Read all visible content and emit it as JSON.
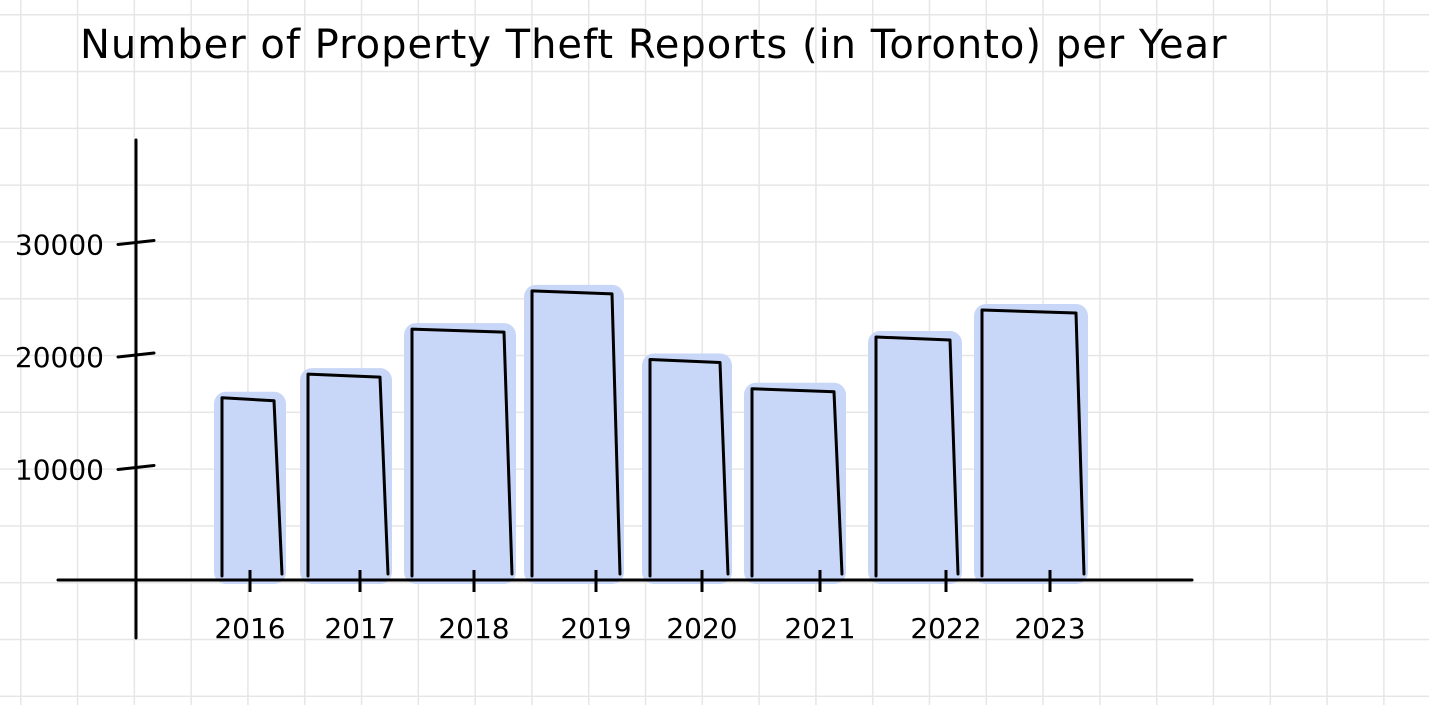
{
  "chart_data": {
    "type": "bar",
    "title": "Number of Property Theft Reports (in Toronto) per Year",
    "xlabel": "",
    "ylabel": "",
    "categories": [
      "2016",
      "2017",
      "2018",
      "2019",
      "2020",
      "2021",
      "2022",
      "2023"
    ],
    "values": [
      16200,
      18300,
      22300,
      25700,
      19600,
      17000,
      21600,
      24000
    ],
    "y_ticks": [
      "10000",
      "20000",
      "30000"
    ],
    "ylim": [
      0,
      30000
    ],
    "grid": false,
    "colors": {
      "bar_fill": "#c8d6f7",
      "bar_outline": "#000000",
      "axis": "#000000",
      "background_grid": "#e6e6e6"
    }
  }
}
